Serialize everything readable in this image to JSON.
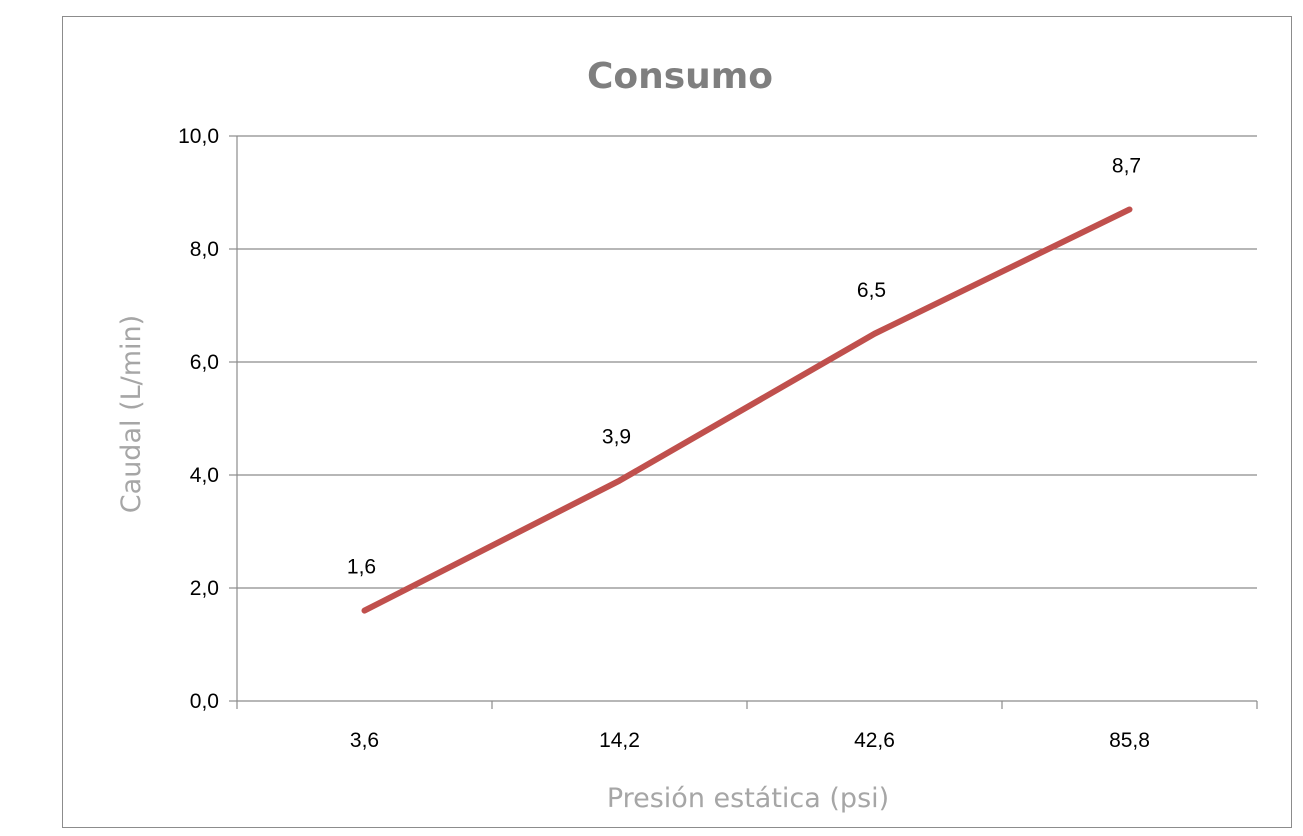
{
  "chart_data": {
    "type": "line",
    "title": "Consumo",
    "xlabel": "Presión estática (psi)",
    "ylabel": "Caudal (L/min)",
    "categories": [
      "3,6",
      "14,2",
      "42,6",
      "85,8"
    ],
    "series": [
      {
        "values": [
          1.6,
          3.9,
          6.5,
          8.7
        ],
        "data_labels": [
          "1,6",
          "3,9",
          "6,5",
          "8,7"
        ],
        "color": "#c0504d"
      }
    ],
    "ylim": [
      0,
      10
    ],
    "yticks": [
      {
        "value": 0,
        "label": "0,0"
      },
      {
        "value": 2,
        "label": "2,0"
      },
      {
        "value": 4,
        "label": "4,0"
      },
      {
        "value": 6,
        "label": "6,0"
      },
      {
        "value": 8,
        "label": "8,0"
      },
      {
        "value": 10,
        "label": "10,0"
      }
    ],
    "grid": true,
    "legend": "none"
  }
}
